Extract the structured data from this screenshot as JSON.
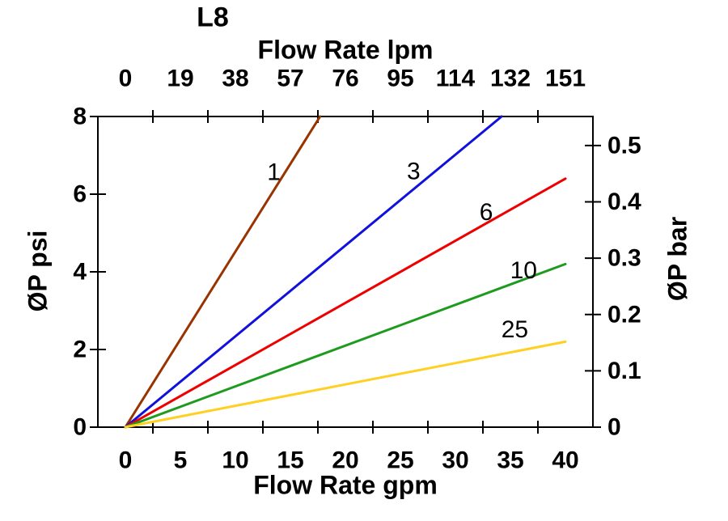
{
  "page_title": "L8",
  "chart_data": {
    "type": "line",
    "title": "L8",
    "grid": false,
    "legend": "none-inline-labels",
    "background": "#FFFFFF",
    "axis_color": "#000000",
    "axes": {
      "bottom": {
        "label": "Flow Rate gpm",
        "ticks": [
          0,
          5,
          10,
          15,
          20,
          25,
          30,
          35,
          40
        ],
        "range": [
          0,
          42.5
        ],
        "minor_tick_interval": 2.5
      },
      "top": {
        "label": "Flow Rate lpm",
        "ticks": [
          0,
          19,
          38,
          57,
          76,
          95,
          114,
          132,
          151
        ]
      },
      "left": {
        "label": "ØP psi",
        "ticks": [
          0,
          2,
          4,
          6,
          8
        ],
        "range": [
          0,
          8
        ]
      },
      "right": {
        "label": "ØP bar",
        "ticks": [
          0,
          0.1,
          0.2,
          0.3,
          0.4,
          0.5
        ],
        "range": [
          0,
          0.55
        ]
      }
    },
    "series": [
      {
        "name": "1",
        "color": "#993300",
        "points": [
          [
            0,
            0
          ],
          [
            17.7,
            8
          ]
        ],
        "label": {
          "text": "1",
          "x": 13.5,
          "y": 6.56
        }
      },
      {
        "name": "3",
        "color": "#1111DD",
        "points": [
          [
            0,
            0
          ],
          [
            34.2,
            8
          ]
        ],
        "label": {
          "text": "3",
          "x": 26.2,
          "y": 6.58
        }
      },
      {
        "name": "6",
        "color": "#EE0000",
        "points": [
          [
            0,
            0
          ],
          [
            40,
            6.4
          ]
        ],
        "label": {
          "text": "6",
          "x": 32.8,
          "y": 5.53
        }
      },
      {
        "name": "10",
        "color": "#1E9B1E",
        "points": [
          [
            0,
            0
          ],
          [
            40,
            4.2
          ]
        ],
        "label": {
          "text": "10",
          "x": 36.2,
          "y": 4.03
        }
      },
      {
        "name": "25",
        "color": "#FFD021",
        "points": [
          [
            0,
            0
          ],
          [
            40,
            2.2
          ]
        ],
        "label": {
          "text": "25",
          "x": 35.4,
          "y": 2.51
        }
      }
    ]
  }
}
